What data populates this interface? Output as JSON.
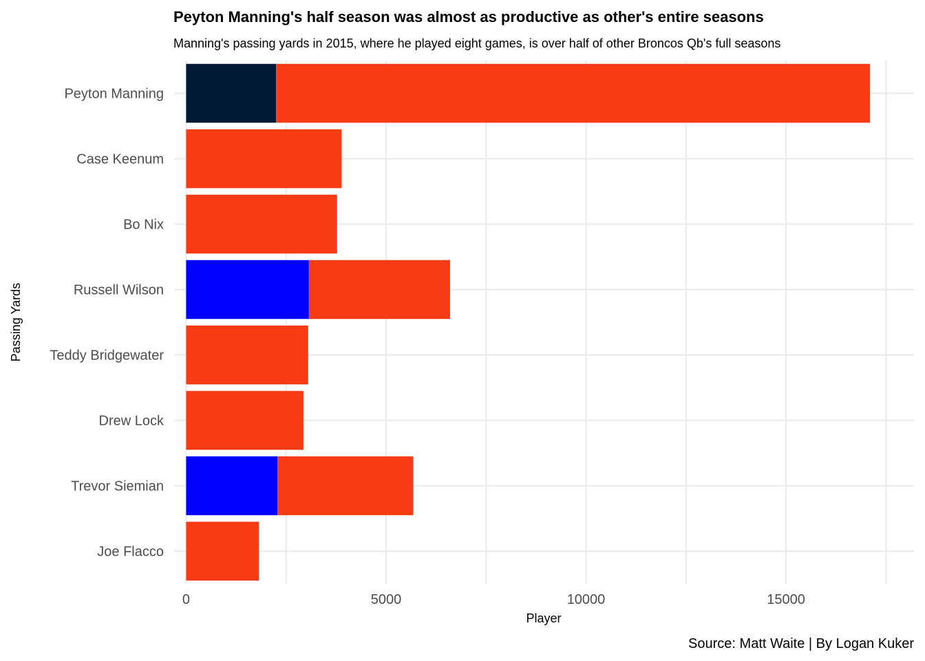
{
  "chart_data": {
    "type": "bar",
    "orientation": "horizontal",
    "stacked": true,
    "title": "Peyton Manning's half season was almost as productive as other's entire seasons",
    "subtitle": "Manning's passing yards in 2015, where he played eight games, is over half of other Broncos Qb's full seasons",
    "xlabel": "Player",
    "ylabel": "Passing Yards",
    "caption": "Source: Matt Waite | By Logan Kuker",
    "xlim": [
      -300,
      18200
    ],
    "xticks": [
      0,
      5000,
      10000,
      15000
    ],
    "grid": true,
    "legend": "none",
    "categories": [
      "Peyton Manning",
      "Case Keenum",
      "Bo Nix",
      "Russell Wilson",
      "Teddy Bridgewater",
      "Drew Lock",
      "Trevor Siemian",
      "Joe Flacco"
    ],
    "segments": [
      {
        "category": "Peyton Manning",
        "start": 0,
        "value": 2249,
        "color": "#001a36"
      },
      {
        "category": "Peyton Manning",
        "start": 2249,
        "value": 14852,
        "color": "#f73b15"
      },
      {
        "category": "Case Keenum",
        "start": 0,
        "value": 3890,
        "color": "#f73b15"
      },
      {
        "category": "Bo Nix",
        "start": 0,
        "value": 3775,
        "color": "#f73b15"
      },
      {
        "category": "Russell Wilson",
        "start": 0,
        "value": 3070,
        "color": "#0000ff"
      },
      {
        "category": "Russell Wilson",
        "start": 3070,
        "value": 3530,
        "color": "#f73b15"
      },
      {
        "category": "Teddy Bridgewater",
        "start": 0,
        "value": 3052,
        "color": "#f73b15"
      },
      {
        "category": "Drew Lock",
        "start": 0,
        "value": 2933,
        "color": "#f73b15"
      },
      {
        "category": "Trevor Siemian",
        "start": 0,
        "value": 2285,
        "color": "#0000ff"
      },
      {
        "category": "Trevor Siemian",
        "start": 2285,
        "value": 3395,
        "color": "#f73b15"
      },
      {
        "category": "Joe Flacco",
        "start": 0,
        "value": 1822,
        "color": "#f73b15"
      }
    ]
  }
}
